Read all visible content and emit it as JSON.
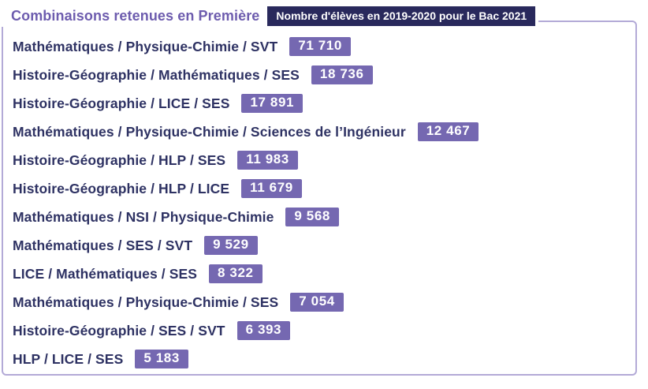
{
  "title": "Combinaisons retenues en Première",
  "header_badge": "Nombre d'élèves en 2019-2020 pour le Bac 2021",
  "colors": {
    "title_text": "#6d5cae",
    "row_label_text": "#2e3263",
    "value_badge_bg": "#7568b1",
    "value_badge_text": "#ffffff",
    "header_badge_bg": "#29295c",
    "header_badge_text": "#ffffff",
    "frame_border": "#b3aad7"
  },
  "rows": [
    {
      "label": "Mathématiques / Physique-Chimie / SVT",
      "value": "71 710"
    },
    {
      "label": "Histoire-Géographie / Mathématiques / SES",
      "value": "18 736"
    },
    {
      "label": "Histoire-Géographie / LICE / SES",
      "value": "17 891"
    },
    {
      "label": "Mathématiques / Physique-Chimie / Sciences de l’Ingénieur",
      "value": "12 467"
    },
    {
      "label": "Histoire-Géographie / HLP / SES",
      "value": "11 983"
    },
    {
      "label": "Histoire-Géographie / HLP / LICE",
      "value": "11 679"
    },
    {
      "label": "Mathématiques / NSI / Physique-Chimie",
      "value": "9 568"
    },
    {
      "label": "Mathématiques / SES / SVT",
      "value": "9 529"
    },
    {
      "label": "LICE / Mathématiques / SES",
      "value": "8 322"
    },
    {
      "label": "Mathématiques / Physique-Chimie / SES",
      "value": "7 054"
    },
    {
      "label": "Histoire-Géographie / SES / SVT",
      "value": "6 393"
    },
    {
      "label": "HLP / LICE / SES",
      "value": "5 183"
    }
  ],
  "chart_data": {
    "type": "table",
    "title": "Combinaisons retenues en Première",
    "subtitle": "Nombre d'élèves en 2019-2020 pour le Bac 2021",
    "categories": [
      "Mathématiques / Physique-Chimie / SVT",
      "Histoire-Géographie / Mathématiques / SES",
      "Histoire-Géographie / LICE / SES",
      "Mathématiques / Physique-Chimie / Sciences de l’Ingénieur",
      "Histoire-Géographie / HLP / SES",
      "Histoire-Géographie / HLP / LICE",
      "Mathématiques / NSI / Physique-Chimie",
      "Mathématiques / SES / SVT",
      "LICE / Mathématiques / SES",
      "Mathématiques / Physique-Chimie / SES",
      "Histoire-Géographie / SES / SVT",
      "HLP / LICE / SES"
    ],
    "values": [
      71710,
      18736,
      17891,
      12467,
      11983,
      11679,
      9568,
      9529,
      8322,
      7054,
      6393,
      5183
    ],
    "value_labels": [
      "71 710",
      "18 736",
      "17 891",
      "12 467",
      "11 983",
      "11 679",
      "9 568",
      "9 529",
      "8 322",
      "7 054",
      "6 393",
      "5 183"
    ],
    "xlabel": "",
    "ylabel": "Nombre d'élèves",
    "legend": false,
    "grid": false
  }
}
